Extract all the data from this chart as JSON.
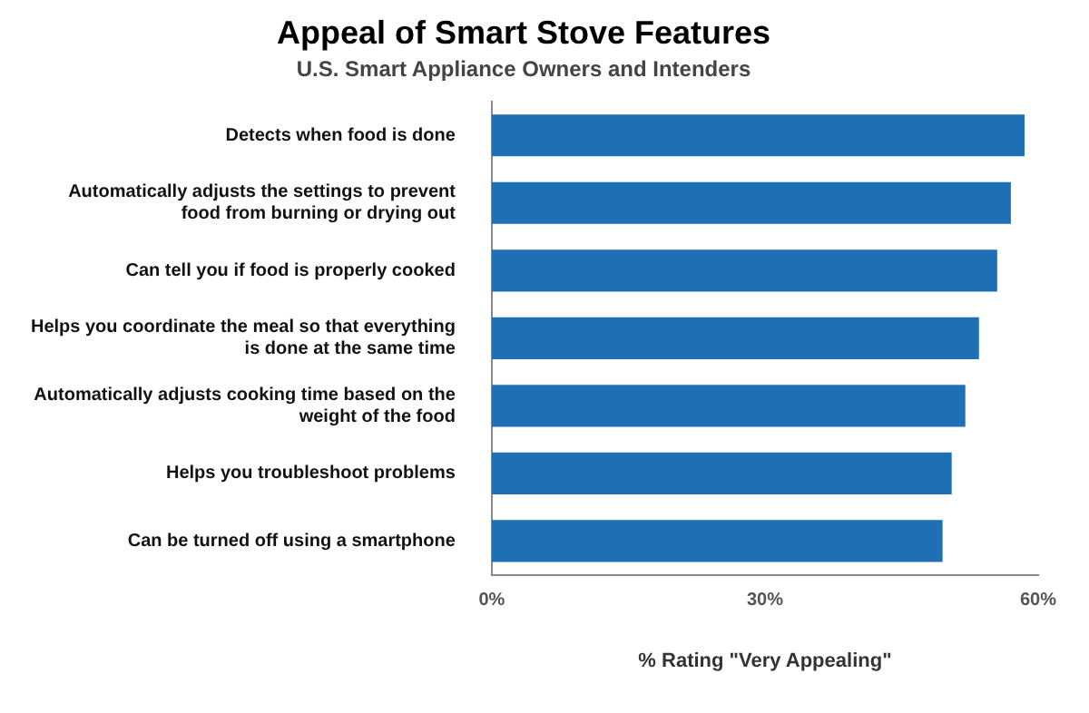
{
  "chart_data": {
    "type": "bar",
    "orientation": "horizontal",
    "title": "Appeal of Smart Stove Features",
    "subtitle": "U.S. Smart Appliance Owners and Intenders",
    "xlabel": "% Rating \"Very Appealing\"",
    "categories": [
      "Detects when food is done",
      "Automatically adjusts the settings to prevent food from burning or drying out",
      "Can tell you if food is properly cooked",
      "Helps you coordinate the meal so that everything is done at the same time",
      "Automatically adjusts cooking time based on the weight of the food",
      "Helps you troubleshoot problems",
      "Can be turned off using a smartphone"
    ],
    "values": [
      58.5,
      57,
      55.5,
      53.5,
      52,
      50.5,
      49.5
    ],
    "color": "#1f6fb5",
    "xlim": [
      0,
      60
    ],
    "xticks": [
      {
        "value": 0,
        "label": "0%"
      },
      {
        "value": 30,
        "label": "30%"
      },
      {
        "value": 60,
        "label": "60%"
      }
    ],
    "grid": false,
    "legend": false
  }
}
